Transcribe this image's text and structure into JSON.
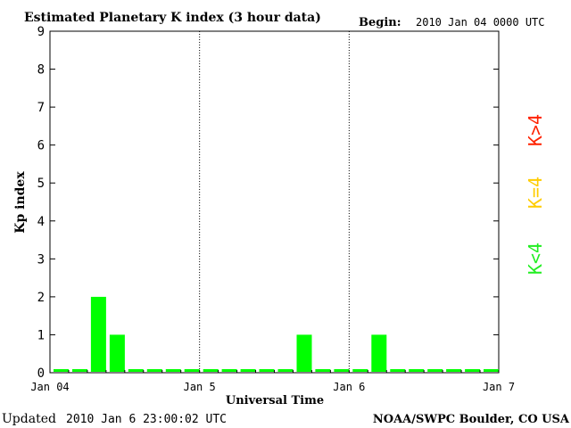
{
  "header": {
    "title": "Estimated Planetary K index (3 hour data)",
    "begin_label": "Begin:",
    "begin_value": "2010 Jan 04 0000 UTC"
  },
  "footer": {
    "updated_label": "Updated",
    "updated_value": "2010 Jan  6 23:00:02 UTC",
    "credit": "NOAA/SWPC Boulder, CO USA"
  },
  "legend": {
    "high": {
      "label": "K>4",
      "color": "#ff2200"
    },
    "mid": {
      "label": "K=4",
      "color": "#ffcc00"
    },
    "low": {
      "label": "K<4",
      "color": "#22ee22"
    }
  },
  "chart_data": {
    "type": "bar",
    "ylabel": "Kp index",
    "xlabel": "Universal Time",
    "ylim": [
      0,
      9
    ],
    "yticks": [
      "0",
      "1",
      "2",
      "3",
      "4",
      "5",
      "6",
      "7",
      "8",
      "9"
    ],
    "xticks": [
      "Jan 04",
      "Jan 5",
      "Jan 6",
      "Jan 7"
    ],
    "day_dividers": "dotted",
    "bar_color": "#00ff00",
    "values": [
      0,
      0,
      2,
      1,
      0,
      0,
      0,
      0,
      0,
      0,
      0,
      0,
      0,
      1,
      0,
      0,
      0,
      1,
      0,
      0,
      0,
      0,
      0,
      0
    ]
  }
}
